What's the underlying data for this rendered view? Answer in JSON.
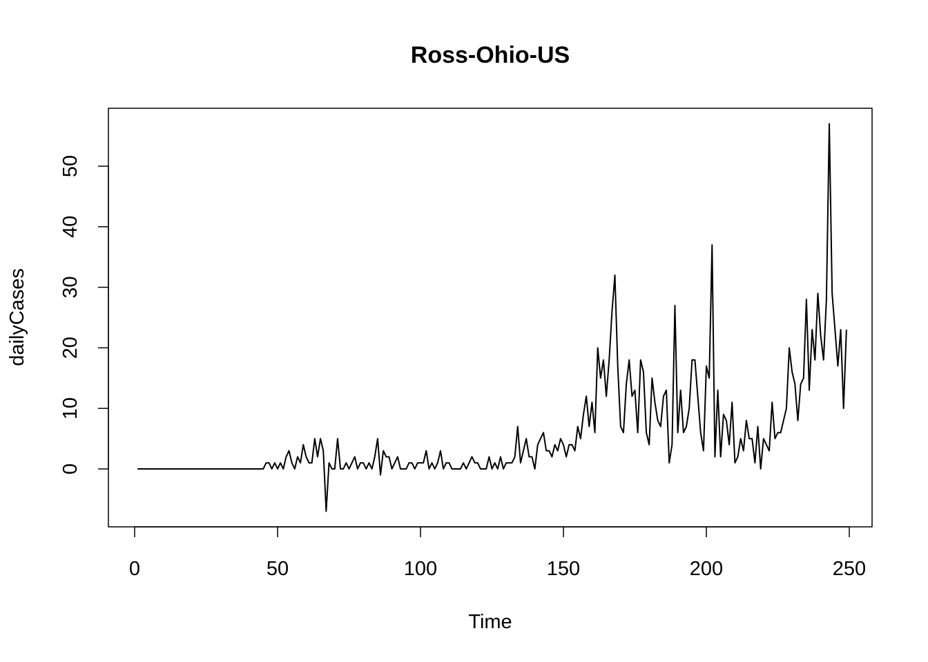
{
  "chart_data": {
    "type": "line",
    "title": "Ross-Ohio-US",
    "xlabel": "Time",
    "ylabel": "dailyCases",
    "xlim": [
      1,
      248
    ],
    "ylim": [
      -7,
      57
    ],
    "grid": false,
    "x_ticks": [
      0,
      50,
      100,
      150,
      200,
      250
    ],
    "y_ticks": [
      0,
      10,
      20,
      30,
      40,
      50
    ],
    "x_tick_labels": [
      "0",
      "50",
      "100",
      "150",
      "200",
      "250"
    ],
    "y_tick_labels": [
      "0",
      "10",
      "20",
      "30",
      "40",
      "50"
    ],
    "x_start": 1,
    "series": [
      {
        "color": "#000000",
        "values": [
          0,
          0,
          0,
          0,
          0,
          0,
          0,
          0,
          0,
          0,
          0,
          0,
          0,
          0,
          0,
          0,
          0,
          0,
          0,
          0,
          0,
          0,
          0,
          0,
          0,
          0,
          0,
          0,
          0,
          0,
          0,
          0,
          0,
          0,
          0,
          0,
          0,
          0,
          0,
          0,
          0,
          0,
          0,
          0,
          0,
          1,
          1,
          0,
          1,
          0,
          1,
          0,
          2,
          3,
          1,
          0,
          2,
          1,
          4,
          2,
          1,
          1,
          5,
          2,
          5,
          3,
          -7,
          1,
          0,
          0,
          5,
          0,
          0,
          1,
          0,
          1,
          2,
          0,
          1,
          1,
          0,
          1,
          0,
          2,
          5,
          -1,
          3,
          2,
          2,
          0,
          1,
          2,
          0,
          0,
          0,
          1,
          1,
          0,
          1,
          1,
          1,
          3,
          0,
          1,
          0,
          1,
          3,
          0,
          1,
          1,
          0,
          0,
          0,
          0,
          1,
          0,
          1,
          2,
          1,
          1,
          0,
          0,
          0,
          2,
          0,
          1,
          0,
          2,
          0,
          1,
          1,
          1,
          2,
          7,
          1,
          3,
          5,
          2,
          2,
          0,
          4,
          5,
          6,
          3,
          3,
          2,
          4,
          3,
          5,
          4,
          2,
          4,
          4,
          3,
          7,
          5,
          9,
          12,
          7,
          11,
          6,
          20,
          15,
          18,
          12,
          18,
          26,
          32,
          17,
          7,
          6,
          14,
          18,
          12,
          13,
          6,
          18,
          16,
          6,
          4,
          15,
          11,
          8,
          7,
          12,
          13,
          1,
          4,
          27,
          6,
          13,
          6,
          7,
          10,
          18,
          18,
          12,
          6,
          3,
          17,
          15,
          37,
          2,
          13,
          2,
          9,
          8,
          4,
          11,
          1,
          2,
          5,
          3,
          8,
          5,
          5,
          1,
          7,
          0,
          5,
          4,
          3,
          11,
          5,
          6,
          6,
          8,
          10,
          20,
          16,
          14,
          8,
          14,
          15,
          28,
          13,
          23,
          18,
          29,
          22,
          18,
          28,
          57,
          29,
          23,
          17,
          23,
          10,
          23
        ]
      }
    ]
  }
}
